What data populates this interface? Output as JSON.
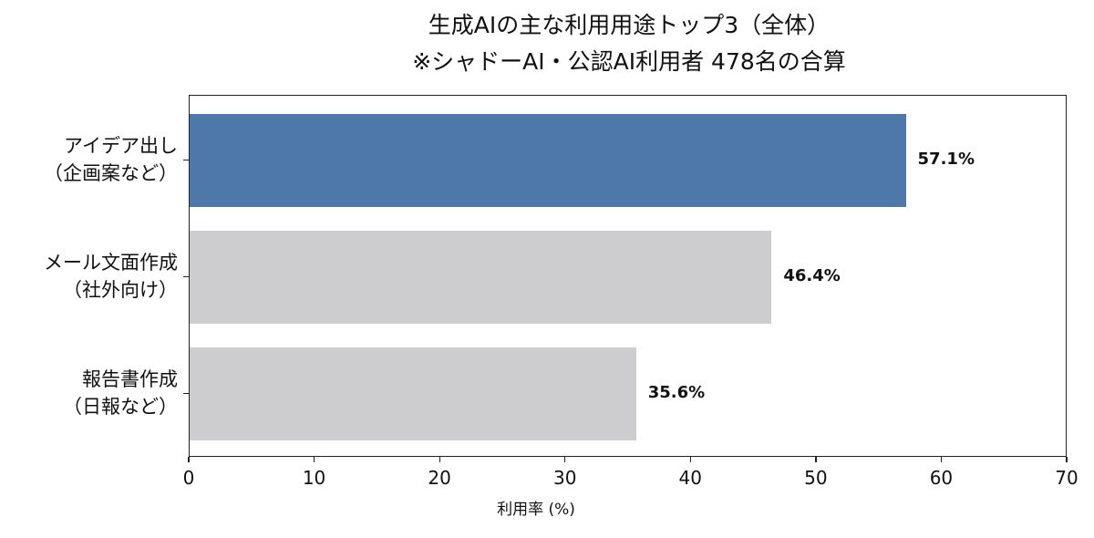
{
  "chart_data": {
    "type": "bar",
    "orientation": "horizontal",
    "title": "生成AIの主な利用用途トップ3（全体）",
    "subtitle": "※シャドーAI・公認AI利用者 478名の合算",
    "categories": [
      "アイデア出し（企画案など）",
      "メール文面作成（社外向け）",
      "報告書作成（日報など）"
    ],
    "category_lines": [
      [
        "アイデア出し",
        "（企画案など）"
      ],
      [
        "メール文面作成",
        "（社外向け）"
      ],
      [
        "報告書作成",
        "（日報など）"
      ]
    ],
    "values": [
      57.1,
      46.4,
      35.6
    ],
    "value_labels": [
      "57.1%",
      "46.4%",
      "35.6%"
    ],
    "colors": [
      "#4e77aa",
      "#cdcdcf",
      "#cdcdcf"
    ],
    "xlabel": "利用率 (%)",
    "ylabel": "",
    "xlim": [
      0,
      70
    ],
    "xticks": [
      0,
      10,
      20,
      30,
      40,
      50,
      60,
      70
    ],
    "xtick_labels": [
      "0",
      "10",
      "20",
      "30",
      "40",
      "50",
      "60",
      "70"
    ],
    "grid": false,
    "legend": null
  }
}
